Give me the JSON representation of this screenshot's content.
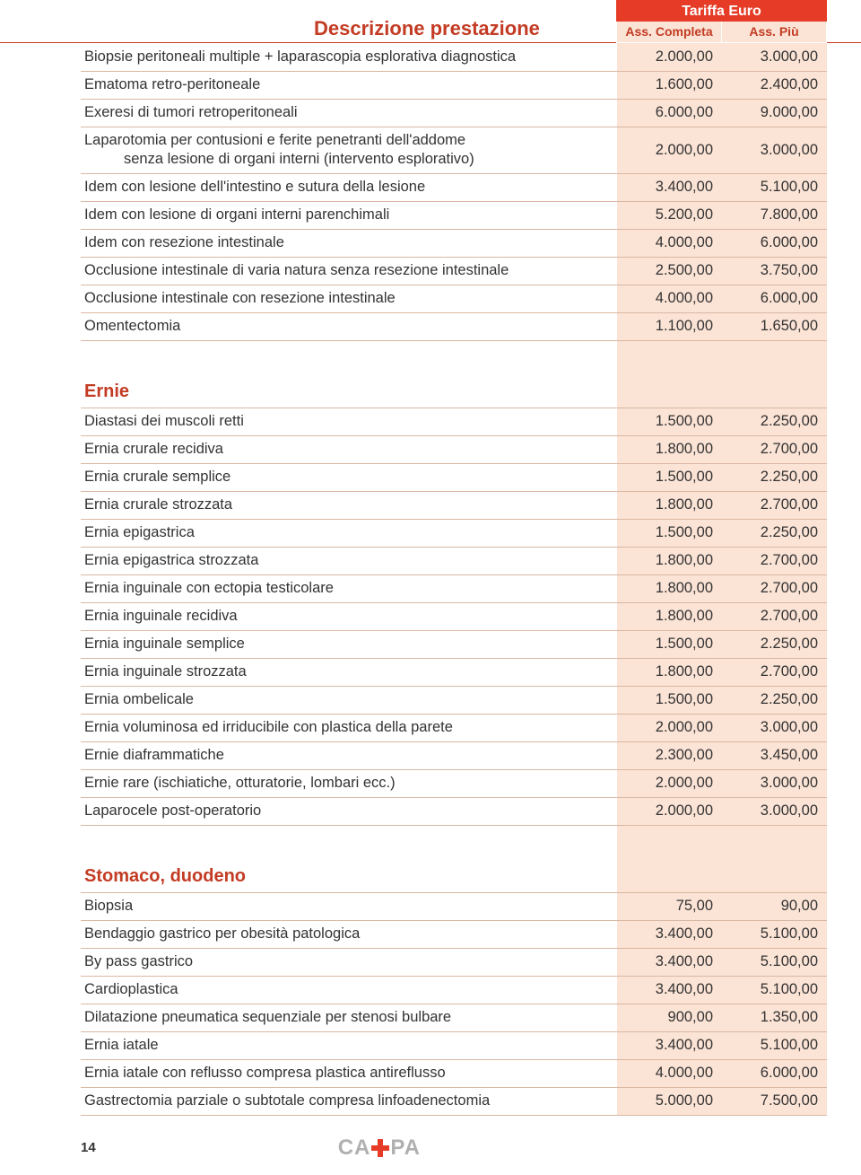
{
  "header": {
    "title": "Descrizione prestazione",
    "tariff_label": "Tariffa Euro",
    "col1": "Ass. Completa",
    "col2": "Ass. Più"
  },
  "rows": [
    {
      "desc": "Biopsie peritoneali multiple + laparascopia esplorativa diagnostica",
      "v1": "2.000,00",
      "v2": "3.000,00"
    },
    {
      "desc": "Ematoma retro-peritoneale",
      "v1": "1.600,00",
      "v2": "2.400,00"
    },
    {
      "desc": "Exeresi di tumori retroperitoneali",
      "v1": "6.000,00",
      "v2": "9.000,00"
    },
    {
      "desc": "Laparotomia per contusioni e ferite penetranti dell'addome",
      "sub": "senza lesione di organi interni (intervento esplorativo)",
      "v1": "2.000,00",
      "v2": "3.000,00",
      "tall": true
    },
    {
      "desc": "Idem con lesione dell'intestino e sutura della lesione",
      "v1": "3.400,00",
      "v2": "5.100,00"
    },
    {
      "desc": "Idem con lesione di organi interni parenchimali",
      "v1": "5.200,00",
      "v2": "7.800,00"
    },
    {
      "desc": "Idem con resezione intestinale",
      "v1": "4.000,00",
      "v2": "6.000,00"
    },
    {
      "desc": "Occlusione intestinale di varia natura senza resezione intestinale",
      "v1": "2.500,00",
      "v2": "3.750,00"
    },
    {
      "desc": "Occlusione intestinale con resezione intestinale",
      "v1": "4.000,00",
      "v2": "6.000,00"
    },
    {
      "desc": "Omentectomia",
      "v1": "1.100,00",
      "v2": "1.650,00"
    },
    {
      "section": "Ernie"
    },
    {
      "desc": "Diastasi dei muscoli retti",
      "v1": "1.500,00",
      "v2": "2.250,00"
    },
    {
      "desc": "Ernia crurale recidiva",
      "v1": "1.800,00",
      "v2": "2.700,00"
    },
    {
      "desc": "Ernia crurale semplice",
      "v1": "1.500,00",
      "v2": "2.250,00"
    },
    {
      "desc": "Ernia crurale strozzata",
      "v1": "1.800,00",
      "v2": "2.700,00"
    },
    {
      "desc": "Ernia epigastrica",
      "v1": "1.500,00",
      "v2": "2.250,00"
    },
    {
      "desc": "Ernia epigastrica strozzata",
      "v1": "1.800,00",
      "v2": "2.700,00"
    },
    {
      "desc": "Ernia inguinale con ectopia testicolare",
      "v1": "1.800,00",
      "v2": "2.700,00"
    },
    {
      "desc": "Ernia inguinale recidiva",
      "v1": "1.800,00",
      "v2": "2.700,00"
    },
    {
      "desc": "Ernia inguinale semplice",
      "v1": "1.500,00",
      "v2": "2.250,00"
    },
    {
      "desc": "Ernia inguinale strozzata",
      "v1": "1.800,00",
      "v2": "2.700,00"
    },
    {
      "desc": "Ernia ombelicale",
      "v1": "1.500,00",
      "v2": "2.250,00"
    },
    {
      "desc": "Ernia voluminosa ed irriducibile con plastica della parete",
      "v1": "2.000,00",
      "v2": "3.000,00"
    },
    {
      "desc": "Ernie diaframmatiche",
      "v1": "2.300,00",
      "v2": "3.450,00"
    },
    {
      "desc": "Ernie rare (ischiatiche, otturatorie, lombari ecc.)",
      "v1": "2.000,00",
      "v2": "3.000,00"
    },
    {
      "desc": "Laparocele post-operatorio",
      "v1": "2.000,00",
      "v2": "3.000,00"
    },
    {
      "section": "Stomaco, duodeno"
    },
    {
      "desc": "Biopsia",
      "v1": "75,00",
      "v2": "90,00"
    },
    {
      "desc": "Bendaggio gastrico per obesità patologica",
      "v1": "3.400,00",
      "v2": "5.100,00"
    },
    {
      "desc": "By pass gastrico",
      "v1": "3.400,00",
      "v2": "5.100,00"
    },
    {
      "desc": "Cardioplastica",
      "v1": "3.400,00",
      "v2": "5.100,00"
    },
    {
      "desc": "Dilatazione pneumatica sequenziale per stenosi bulbare",
      "v1": "900,00",
      "v2": "1.350,00"
    },
    {
      "desc": "Ernia iatale",
      "v1": "3.400,00",
      "v2": "5.100,00"
    },
    {
      "desc": "Ernia iatale con reflusso compresa plastica antireflusso",
      "v1": "4.000,00",
      "v2": "6.000,00"
    },
    {
      "desc": "Gastrectomia parziale o subtotale compresa linfoadenectomia",
      "v1": "5.000,00",
      "v2": "7.500,00"
    }
  ],
  "footer": {
    "page": "14",
    "logo_left": "CA",
    "logo_right": "PA"
  }
}
